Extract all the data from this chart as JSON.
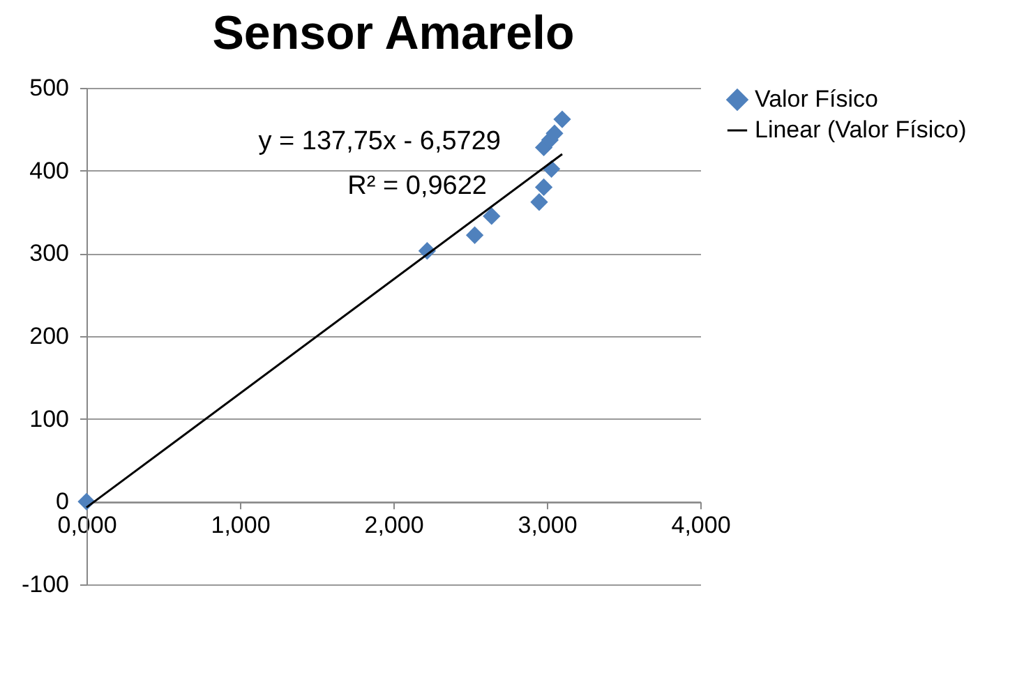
{
  "chart_data": {
    "type": "scatter",
    "title": "Sensor Amarelo",
    "xlim": [
      0,
      4
    ],
    "xticks": [
      {
        "value": 0,
        "label": "0,000"
      },
      {
        "value": 1,
        "label": "1,000"
      },
      {
        "value": 2,
        "label": "2,000"
      },
      {
        "value": 3,
        "label": "3,000"
      },
      {
        "value": 4,
        "label": "4,000"
      }
    ],
    "ylim": [
      -100,
      500
    ],
    "yticks": [
      -100,
      0,
      100,
      200,
      300,
      400,
      500
    ],
    "grid": "y",
    "legend": "right",
    "marker": "diamond",
    "annotations": [
      "y = 137,75x - 6,5729",
      "R² = 0,9622"
    ],
    "series": [
      {
        "name": "Valor Físico",
        "color": "#4f81bd",
        "x": [
          0,
          2.22,
          2.53,
          2.64,
          2.95,
          2.98,
          3.03,
          2.98,
          3.02,
          3.05,
          3.1
        ],
        "values": [
          0,
          303,
          322,
          345,
          362,
          380,
          402,
          428,
          437,
          445,
          462
        ]
      },
      {
        "name": "Linear (Valor Físico)",
        "type": "line",
        "marker": "none",
        "color": "#000000",
        "x": [
          0,
          3.1
        ],
        "values": [
          -7,
          420
        ]
      }
    ]
  }
}
